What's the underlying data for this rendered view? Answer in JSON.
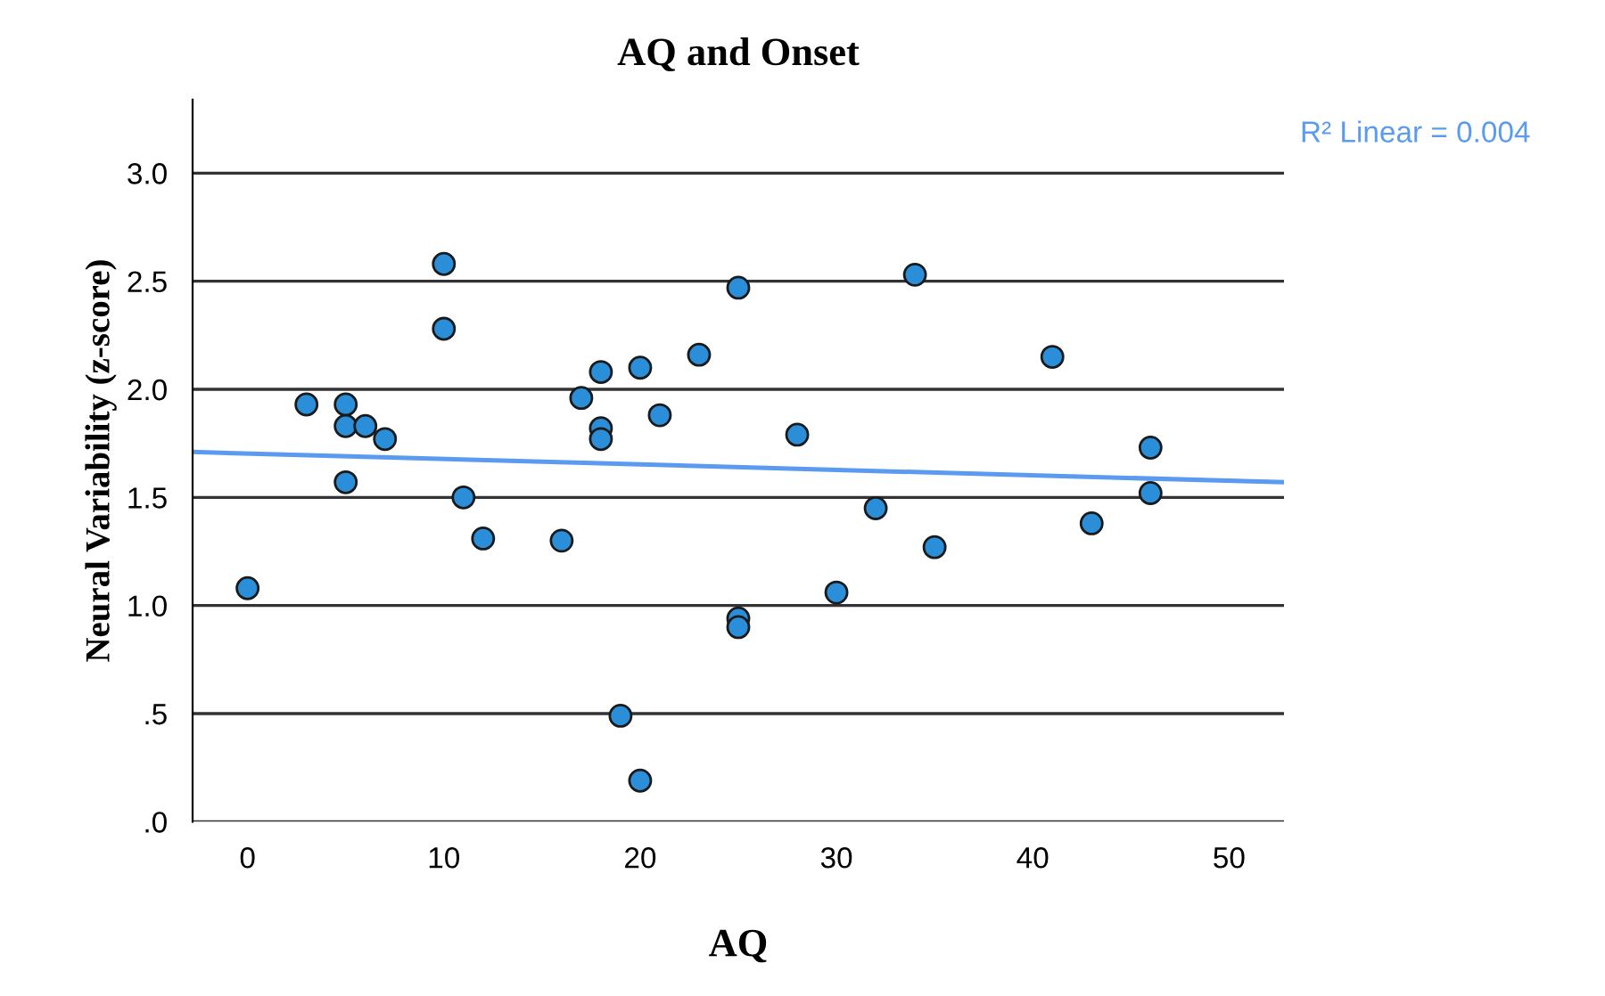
{
  "chart_data": {
    "type": "scatter",
    "title": "AQ and Onset",
    "xlabel": "AQ",
    "ylabel": "Neural Variability (z-score)",
    "annotations": [
      "R² Linear = 0.004"
    ],
    "series": [
      {
        "marker": "circle",
        "color": "#2a8fd8",
        "x": [
          0,
          3,
          5,
          5,
          5,
          6,
          7,
          10,
          10,
          11,
          12,
          16,
          17,
          18,
          18,
          18,
          19,
          20,
          20,
          21,
          23,
          25,
          25,
          25,
          28,
          30,
          32,
          34,
          35,
          41,
          43,
          46,
          46
        ],
        "values": [
          1.08,
          1.93,
          1.93,
          1.83,
          1.57,
          1.83,
          1.77,
          2.58,
          2.28,
          1.5,
          1.31,
          1.3,
          1.96,
          2.08,
          1.82,
          1.77,
          0.49,
          2.1,
          0.19,
          1.88,
          2.16,
          2.47,
          0.94,
          0.9,
          1.79,
          1.06,
          1.45,
          2.53,
          1.27,
          2.15,
          1.38,
          1.73,
          1.52
        ]
      },
      {
        "type": "line",
        "color": "#5b9bef",
        "x": [
          -2.8,
          52.8
        ],
        "values": [
          1.71,
          1.57
        ]
      }
    ],
    "grid": "y",
    "legend": false,
    "xlim": [
      -2.8,
      52.8
    ],
    "xticks": [
      0,
      10,
      20,
      30,
      40,
      50
    ],
    "ylim": [
      0,
      3.34
    ],
    "yticks": [
      {
        "value": 0,
        "label": ".0"
      },
      {
        "value": 0.5,
        "label": ".5"
      },
      {
        "value": 1,
        "label": "1.0"
      },
      {
        "value": 1.5,
        "label": "1.5"
      },
      {
        "value": 2,
        "label": "2.0"
      },
      {
        "value": 2.5,
        "label": "2.5"
      },
      {
        "value": 3,
        "label": "3.0"
      }
    ]
  }
}
